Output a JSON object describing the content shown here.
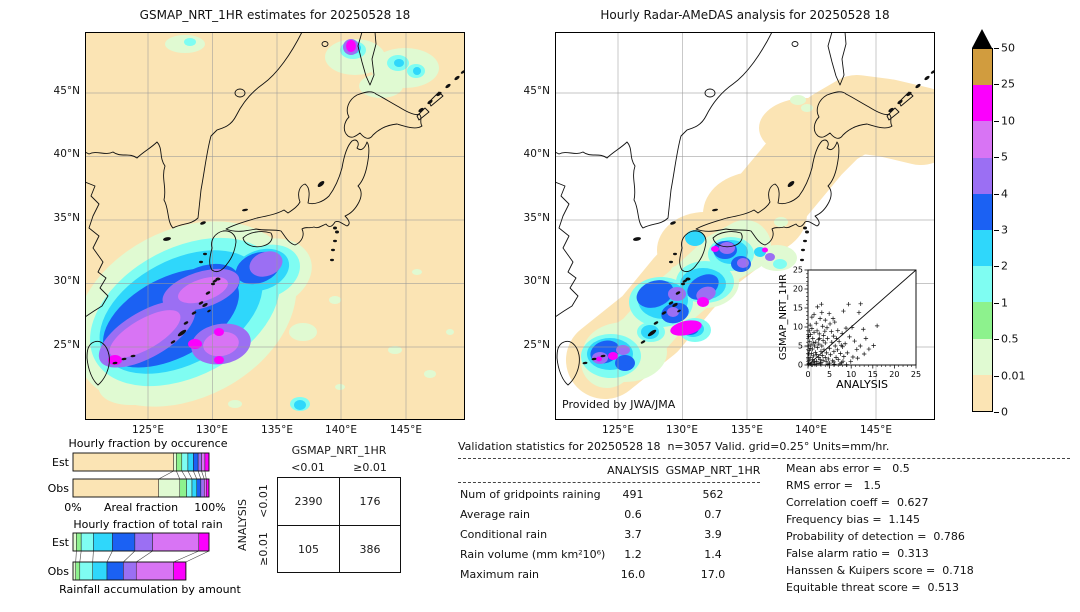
{
  "figure": {
    "bg": "#ffffff",
    "text_color": "#1a1a1a"
  },
  "palette": {
    "wheat": "#fbe4b4",
    "palegreen": "#e0fad2",
    "lightgreen": "#8df28d",
    "aqua": "#7ffdf2",
    "skyblue": "#2fd7fb",
    "blue": "#1b61f3",
    "mediumpurple": "#9b6ff3",
    "orchid": "#d874f4",
    "magenta": "#fb00fd",
    "goldenrod": "#d19c3e",
    "over": "#000000"
  },
  "left_map": {
    "title": "GSMAP_NRT_1HR estimates for 20250528 18",
    "lat_ticks": [
      "45°N",
      "40°N",
      "35°N",
      "30°N",
      "25°N"
    ],
    "lon_ticks": [
      "125°E",
      "130°E",
      "135°E",
      "140°E",
      "145°E"
    ]
  },
  "right_map": {
    "title": "Hourly Radar-AMeDAS analysis for 20250528 18",
    "credit": "Provided by JWA/JMA",
    "lat_ticks": [
      "45°N",
      "40°N",
      "35°N",
      "30°N",
      "25°N"
    ],
    "lon_ticks": [
      "125°E",
      "130°E",
      "135°E",
      "140°E",
      "145°E"
    ]
  },
  "colorbar": {
    "tick_labels": [
      "50",
      "25",
      "10",
      "5",
      "4",
      "3",
      "2",
      "1",
      "0.5",
      "0.01",
      "0"
    ],
    "segments": [
      "goldenrod",
      "magenta",
      "orchid",
      "mediumpurple",
      "blue",
      "skyblue",
      "aqua",
      "lightgreen",
      "palegreen",
      "wheat"
    ]
  },
  "chart_data": [
    {
      "type": "bar",
      "orientation": "horizontal-stacked",
      "title": "Hourly fraction by occurence",
      "xlabel": "Areal fraction",
      "x_left_label": "0%",
      "x_right_label": "100%",
      "xlim": [
        0,
        100
      ],
      "categories": [
        "0–0.01",
        "0.01–0.5",
        "0.5–1",
        "1–2",
        "2–3",
        "3–4",
        "4–5",
        "5–10",
        "≥10"
      ],
      "colors": [
        "wheat",
        "palegreen",
        "lightgreen",
        "aqua",
        "skyblue",
        "blue",
        "mediumpurple",
        "orchid",
        "magenta"
      ],
      "series": [
        {
          "name": "Est",
          "values": [
            74,
            2,
            4,
            4.5,
            4,
            3.5,
            2.5,
            2.5,
            3
          ]
        },
        {
          "name": "Obs",
          "values": [
            63,
            15.5,
            5,
            4,
            3.5,
            3,
            2.5,
            1.5,
            2
          ]
        }
      ]
    },
    {
      "type": "bar",
      "orientation": "horizontal-stacked",
      "title": "Hourly fraction of total rain",
      "note": "Rainfall accumulation by amount",
      "xlim": [
        0,
        100
      ],
      "categories": [
        "0.01–0.5",
        "0.5–1",
        "1–2",
        "2–3",
        "3–4",
        "4–5",
        "5–10",
        "≥10"
      ],
      "colors": [
        "palegreen",
        "lightgreen",
        "aqua",
        "skyblue",
        "blue",
        "mediumpurple",
        "orchid",
        "magenta"
      ],
      "series": [
        {
          "name": "Est",
          "values": [
            2.5,
            3.5,
            9,
            14,
            16.5,
            13,
            34,
            7.5
          ]
        },
        {
          "name": "Obs",
          "values": [
            2,
            3,
            9.5,
            10.5,
            12,
            9.5,
            27.5,
            9
          ]
        }
      ]
    },
    {
      "type": "table",
      "title": "Contingency table",
      "col_group": "GSMAP_NRT_1HR",
      "row_group": "ANALYSIS",
      "col_labels": [
        "<0.01",
        "≥0.01"
      ],
      "row_labels": [
        "<0.01",
        "≥0.01"
      ],
      "values": [
        [
          "2390",
          "176"
        ],
        [
          "105",
          "386"
        ]
      ]
    },
    {
      "type": "scatter",
      "xlabel": "ANALYSIS",
      "ylabel": "GSMAP_NRT_1HR",
      "xlim": [
        0,
        25
      ],
      "ylim": [
        0,
        25
      ],
      "tick_labels": [
        "0",
        "5",
        "10",
        "15",
        "20",
        "25"
      ],
      "marker": "+",
      "diagonal": true,
      "points": [
        [
          0.2,
          0.4
        ],
        [
          0.3,
          1.2
        ],
        [
          0.5,
          2
        ],
        [
          0.6,
          0.3
        ],
        [
          0.8,
          3
        ],
        [
          1,
          1.5
        ],
        [
          1,
          4.2
        ],
        [
          1.2,
          0.6
        ],
        [
          1.3,
          2.4
        ],
        [
          1.5,
          5
        ],
        [
          1.5,
          0.9
        ],
        [
          1.7,
          3.3
        ],
        [
          1.8,
          6
        ],
        [
          2,
          1
        ],
        [
          2,
          2.8
        ],
        [
          2.2,
          4.6
        ],
        [
          2.3,
          0.4
        ],
        [
          2.5,
          5.5
        ],
        [
          2.5,
          2
        ],
        [
          2.7,
          7
        ],
        [
          2.8,
          1.4
        ],
        [
          3,
          3.6
        ],
        [
          3,
          0.7
        ],
        [
          3.2,
          5
        ],
        [
          3.3,
          2.5
        ],
        [
          3.5,
          6.5
        ],
        [
          3.5,
          1.2
        ],
        [
          3.7,
          4
        ],
        [
          4,
          2
        ],
        [
          4,
          5.8
        ],
        [
          4.2,
          0.9
        ],
        [
          4.3,
          3.2
        ],
        [
          4.5,
          7
        ],
        [
          4.7,
          1.6
        ],
        [
          5,
          4.4
        ],
        [
          5,
          0.5
        ],
        [
          5.2,
          2.7
        ],
        [
          5.5,
          6
        ],
        [
          5.7,
          1.1
        ],
        [
          6,
          3.5
        ],
        [
          6,
          0.8
        ],
        [
          6.3,
          5
        ],
        [
          6.5,
          2
        ],
        [
          6.8,
          4
        ],
        [
          7,
          1.4
        ],
        [
          7.2,
          6.2
        ],
        [
          7.5,
          3
        ],
        [
          7.8,
          0.6
        ],
        [
          8,
          4.8
        ],
        [
          8.3,
          2.2
        ],
        [
          0.1,
          5
        ],
        [
          0.2,
          7.5
        ],
        [
          0.3,
          9
        ],
        [
          0.5,
          10.5
        ],
        [
          0.4,
          6.2
        ],
        [
          0.6,
          8
        ],
        [
          0.9,
          9.6
        ],
        [
          1.1,
          7
        ],
        [
          1.4,
          8.6
        ],
        [
          0.2,
          2.9
        ],
        [
          0.1,
          1.6
        ],
        [
          0.2,
          0.2
        ],
        [
          0.3,
          3.8
        ],
        [
          0.7,
          5.3
        ],
        [
          2.1,
          9
        ],
        [
          2.6,
          8.2
        ],
        [
          3.1,
          16
        ],
        [
          2.2,
          15.3
        ],
        [
          4.9,
          13.5
        ],
        [
          4,
          11.8
        ],
        [
          5.8,
          12.2
        ],
        [
          3.4,
          10.2
        ],
        [
          1.9,
          11
        ],
        [
          8.2,
          14.2
        ],
        [
          9.4,
          16
        ],
        [
          12.2,
          16.1
        ],
        [
          11.8,
          13.8
        ],
        [
          8.8,
          9.7
        ],
        [
          10.2,
          9.9
        ],
        [
          12.8,
          9.4
        ],
        [
          16,
          10.3
        ],
        [
          9.6,
          7.4
        ],
        [
          10.8,
          6.3
        ],
        [
          12.1,
          5
        ],
        [
          13.4,
          7
        ],
        [
          15.2,
          5.1
        ],
        [
          8.6,
          5.6
        ],
        [
          9.1,
          3.2
        ],
        [
          10.4,
          2.1
        ],
        [
          11.3,
          4.1
        ],
        [
          7.9,
          8.3
        ],
        [
          6.9,
          9.1
        ],
        [
          5.4,
          8.8
        ],
        [
          0.8,
          0.1
        ],
        [
          1.6,
          0.2
        ],
        [
          2.9,
          0.3
        ],
        [
          4.6,
          0.2
        ],
        [
          6.1,
          0.2
        ],
        [
          7.4,
          0.3
        ],
        [
          8.9,
          0.1
        ],
        [
          5.9,
          7.6
        ],
        [
          6.6,
          7
        ],
        [
          7.7,
          5.2
        ],
        [
          3.9,
          8.9
        ],
        [
          4.4,
          9.8
        ],
        [
          0.5,
          4.4
        ],
        [
          1.2,
          5.8
        ],
        [
          2.4,
          6.7
        ],
        [
          3.6,
          7.8
        ],
        [
          13,
          2.9
        ],
        [
          14.1,
          4.2
        ],
        [
          8.1,
          1
        ],
        [
          9.9,
          0.9
        ],
        [
          11.5,
          1.8
        ],
        [
          0.9,
          12.6
        ],
        [
          1.4,
          13.3
        ],
        [
          2.8,
          12.2
        ],
        [
          3.2,
          13.8
        ],
        [
          5.1,
          10.8
        ],
        [
          6.2,
          11.3
        ]
      ]
    },
    {
      "type": "table",
      "title": "Validation statistics for 20250528 18  n=3057 Valid. grid=0.25° Units=mm/hr.",
      "col_headers": [
        "ANALYSIS",
        "GSMAP_NRT_1HR"
      ],
      "rows": [
        {
          "label": "Num of gridpoints raining",
          "analysis": "491",
          "gsmap": "562"
        },
        {
          "label": "Average rain",
          "analysis": "0.6",
          "gsmap": "0.7"
        },
        {
          "label": "Conditional rain",
          "analysis": "3.7",
          "gsmap": "3.9"
        },
        {
          "label": "Rain volume (mm km²10⁶)",
          "analysis": "1.2",
          "gsmap": "1.4"
        },
        {
          "label": "Maximum rain",
          "analysis": "16.0",
          "gsmap": "17.0"
        }
      ],
      "stats": [
        "Mean abs error =   0.5",
        "RMS error =   1.5",
        "Correlation coeff =  0.627",
        "Frequency bias =  1.145",
        "Probability of detection =  0.786",
        "False alarm ratio =  0.313",
        "Hanssen & Kuipers score =  0.718",
        "Equitable threat score =  0.513"
      ]
    }
  ]
}
